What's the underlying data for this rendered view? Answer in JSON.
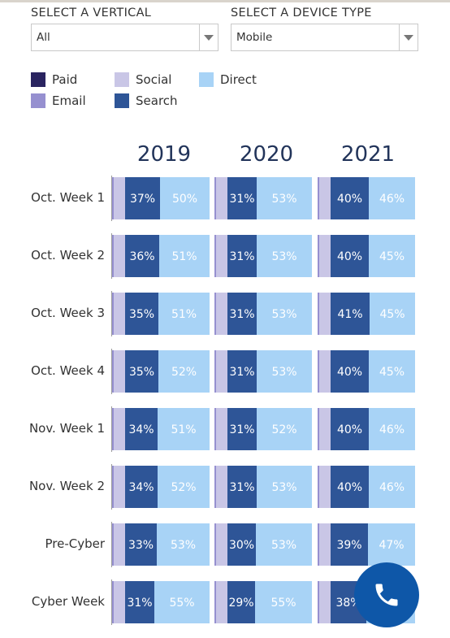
{
  "filters": {
    "vertical": {
      "label": "SELECT A VERTICAL",
      "value": "All"
    },
    "device": {
      "label": "SELECT A DEVICE TYPE",
      "value": "Mobile"
    }
  },
  "legend": [
    {
      "name": "Paid",
      "color": "#2a2460"
    },
    {
      "name": "Social",
      "color": "#c9c6e6"
    },
    {
      "name": "Direct",
      "color": "#a8d3f6"
    },
    {
      "name": "Email",
      "color": "#9690d0"
    },
    {
      "name": "Search",
      "color": "#2e5597"
    }
  ],
  "chart_data": {
    "type": "bar",
    "orientation": "horizontal",
    "stacked": true,
    "years": [
      "2019",
      "2020",
      "2021"
    ],
    "categories": [
      "Oct. Week 1",
      "Oct. Week 2",
      "Oct. Week 3",
      "Oct. Week 4",
      "Nov. Week 1",
      "Nov. Week 2",
      "Pre-Cyber",
      "Cyber Week"
    ],
    "series": [
      {
        "name": "Search",
        "color": "#2e5597",
        "values": {
          "2019": [
            37,
            36,
            35,
            35,
            34,
            34,
            33,
            31
          ],
          "2020": [
            31,
            31,
            31,
            31,
            31,
            31,
            30,
            29
          ],
          "2021": [
            40,
            40,
            41,
            40,
            40,
            40,
            39,
            38
          ]
        },
        "labels": {
          "2019": [
            "37%",
            "36%",
            "35%",
            "35%",
            "34%",
            "34%",
            "33%",
            "31%"
          ],
          "2020": [
            "31%",
            "31%",
            "31%",
            "31%",
            "31%",
            "31%",
            "30%",
            "29%"
          ],
          "2021": [
            "40%",
            "40%",
            "41%",
            "40%",
            "40%",
            "40%",
            "39%",
            "38%"
          ]
        }
      },
      {
        "name": "Direct",
        "color": "#a8d3f6",
        "values": {
          "2019": [
            50,
            51,
            51,
            52,
            51,
            52,
            53,
            55
          ],
          "2020": [
            53,
            53,
            53,
            53,
            52,
            53,
            53,
            55
          ],
          "2021": [
            46,
            45,
            45,
            45,
            46,
            46,
            47,
            null
          ]
        },
        "labels": {
          "2019": [
            "50%",
            "51%",
            "51%",
            "52%",
            "51%",
            "52%",
            "53%",
            "55%"
          ],
          "2020": [
            "53%",
            "53%",
            "53%",
            "53%",
            "52%",
            "53%",
            "53%",
            "55%"
          ],
          "2021": [
            "46%",
            "45%",
            "45%",
            "45%",
            "46%",
            "46%",
            "47%",
            ""
          ]
        }
      }
    ],
    "leading_segment": {
      "name": "Social",
      "color": "#c9c6e6"
    },
    "leading_edge": {
      "color": "#9690d0"
    }
  },
  "icons": {
    "call": "phone-icon"
  }
}
